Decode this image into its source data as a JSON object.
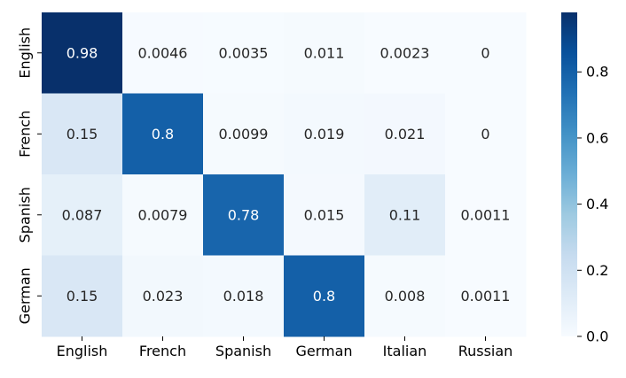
{
  "chart_data": {
    "type": "heatmap",
    "title": "",
    "xlabel": "",
    "ylabel": "",
    "x_categories": [
      "English",
      "French",
      "Spanish",
      "German",
      "Italian",
      "Russian"
    ],
    "y_categories": [
      "English",
      "French",
      "Spanish",
      "German"
    ],
    "values": [
      [
        0.98,
        0.0046,
        0.0035,
        0.011,
        0.0023,
        0
      ],
      [
        0.15,
        0.8,
        0.0099,
        0.019,
        0.021,
        0
      ],
      [
        0.087,
        0.0079,
        0.78,
        0.015,
        0.11,
        0.0011
      ],
      [
        0.15,
        0.023,
        0.018,
        0.8,
        0.008,
        0.0011
      ]
    ],
    "value_labels": [
      [
        "0.98",
        "0.0046",
        "0.0035",
        "0.011",
        "0.0023",
        "0"
      ],
      [
        "0.15",
        "0.8",
        "0.0099",
        "0.019",
        "0.021",
        "0"
      ],
      [
        "0.087",
        "0.0079",
        "0.78",
        "0.015",
        "0.11",
        "0.0011"
      ],
      [
        "0.15",
        "0.023",
        "0.018",
        "0.8",
        "0.008",
        "0.0011"
      ]
    ],
    "colormap": "Blues",
    "colorbar": {
      "range": [
        0,
        0.98
      ],
      "ticks": [
        0.0,
        0.2,
        0.4,
        0.6,
        0.8
      ],
      "tick_labels": [
        "0.0",
        "0.2",
        "0.4",
        "0.6",
        "0.8"
      ]
    },
    "grid": false,
    "legend": "colorbar-right"
  }
}
